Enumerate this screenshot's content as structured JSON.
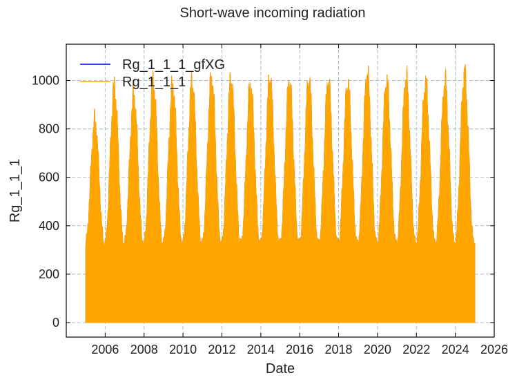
{
  "chart_data": {
    "type": "line",
    "title": "Short-wave incoming radiation",
    "xlabel": "Date",
    "ylabel": "Rg_1_1_1",
    "xlim": [
      "2004-01-01",
      "2026-01-01"
    ],
    "ylim": [
      -60,
      1150
    ],
    "x_ticks": [
      "2006",
      "2008",
      "2010",
      "2012",
      "2014",
      "2016",
      "2018",
      "2020",
      "2022",
      "2024",
      "2026"
    ],
    "y_ticks": [
      0,
      200,
      400,
      600,
      800,
      1000
    ],
    "grid": true,
    "legend_position": "top-left",
    "x_range": [
      "2005-01-01",
      "2025-01-01"
    ],
    "seasonal_peaks": {
      "years": [
        2005,
        2006,
        2007,
        2008,
        2009,
        2010,
        2011,
        2012,
        2013,
        2014,
        2015,
        2016,
        2017,
        2018,
        2019,
        2020,
        2021,
        2022,
        2023,
        2024
      ],
      "values": [
        890,
        1035,
        1000,
        1060,
        1045,
        1060,
        1075,
        1070,
        1045,
        1075,
        1060,
        1065,
        1060,
        1050,
        1095,
        1065,
        1080,
        1055,
        1060,
        1095
      ]
    },
    "winter_floor": 350,
    "series": [
      {
        "name": "Rg_1_1_1_gfXG",
        "color": "#0000ff"
      },
      {
        "name": "Rg_1_1_1",
        "color": "#ffa500"
      }
    ]
  }
}
